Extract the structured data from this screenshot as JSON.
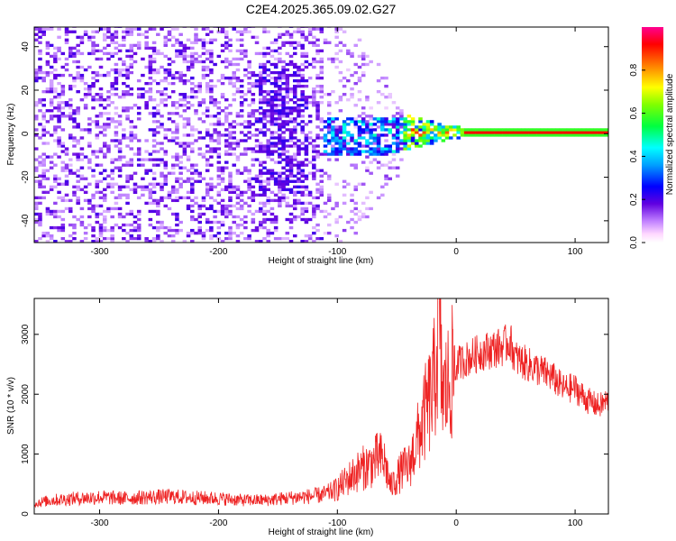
{
  "title": "C2E4.2025.365.09.02.G27",
  "colors": {
    "snr_line": "#ee2222",
    "spectrogram_sweep": "#5a00d8",
    "track": "#ff1020"
  },
  "chart_data": [
    {
      "type": "heatmap",
      "name": "spectrogram",
      "xlabel": "Height of straight line (km)",
      "ylabel": "Frequency (Hz)",
      "xlim": [
        -355,
        128
      ],
      "ylim": [
        -50,
        49
      ],
      "xticks": [
        -300,
        -200,
        -100,
        0,
        100
      ],
      "xtick_labels": [
        "-300",
        "-200",
        "-100",
        "0",
        "100"
      ],
      "yticks": [
        -40,
        -20,
        0,
        20,
        40
      ],
      "ytick_labels": [
        "-40",
        "-20",
        "0",
        "20",
        "40"
      ],
      "colorbar": {
        "label": "Normalized spectral amplitude",
        "range": [
          0,
          1
        ],
        "ticks": [
          0.0,
          0.2,
          0.4,
          0.6,
          0.8
        ],
        "tick_labels": [
          "0.0",
          "0.2",
          "0.4",
          "0.6",
          "0.8"
        ],
        "colors": [
          "#ffffff",
          "#b080ff",
          "#5000d8",
          "#0000ff",
          "#00c8ff",
          "#00ff80",
          "#40ff00",
          "#ffff00",
          "#ff8000",
          "#ff0000",
          "#ff0080"
        ]
      },
      "regions": [
        {
          "name": "noise",
          "x_range": [
            -355,
            -115
          ],
          "amplitude": 0.15
        },
        {
          "name": "transition",
          "x_range": [
            -115,
            -40
          ],
          "amplitude": 0.35
        },
        {
          "name": "converging",
          "x_range": [
            -40,
            5
          ],
          "amplitude": 0.55
        },
        {
          "name": "tone",
          "x_range": [
            5,
            128
          ],
          "frequency": 0,
          "amplitude": 0.9
        }
      ]
    },
    {
      "type": "line",
      "name": "snr",
      "xlabel": "Height of straight line (km)",
      "ylabel": "SNR (10 * v/v)",
      "xlim": [
        -355,
        128
      ],
      "ylim": [
        0,
        3600
      ],
      "xticks": [
        -300,
        -200,
        -100,
        0,
        100
      ],
      "xtick_labels": [
        "-300",
        "-200",
        "-100",
        "0",
        "100"
      ],
      "yticks": [
        0,
        1000,
        2000,
        3000
      ],
      "ytick_labels": [
        "0",
        "1000",
        "2000",
        "3000"
      ],
      "series": [
        {
          "name": "SNR",
          "x": [
            -355,
            -340,
            -320,
            -300,
            -280,
            -260,
            -240,
            -220,
            -200,
            -180,
            -160,
            -140,
            -120,
            -110,
            -100,
            -90,
            -80,
            -70,
            -65,
            -60,
            -55,
            -50,
            -45,
            -40,
            -35,
            -30,
            -25,
            -20,
            -18,
            -16,
            -15,
            -12,
            -10,
            -5,
            0,
            10,
            20,
            30,
            40,
            45,
            50,
            60,
            70,
            80,
            90,
            100,
            110,
            120,
            128
          ],
          "values": [
            180,
            230,
            260,
            280,
            260,
            280,
            290,
            270,
            260,
            230,
            230,
            270,
            300,
            330,
            420,
            600,
            750,
            850,
            950,
            850,
            450,
            600,
            750,
            780,
            1100,
            1400,
            1750,
            2000,
            2300,
            2800,
            3300,
            2100,
            2000,
            2250,
            2500,
            2600,
            2700,
            2750,
            2800,
            2900,
            2600,
            2500,
            2400,
            2300,
            2100,
            2100,
            1900,
            1800,
            1900
          ]
        }
      ]
    }
  ]
}
